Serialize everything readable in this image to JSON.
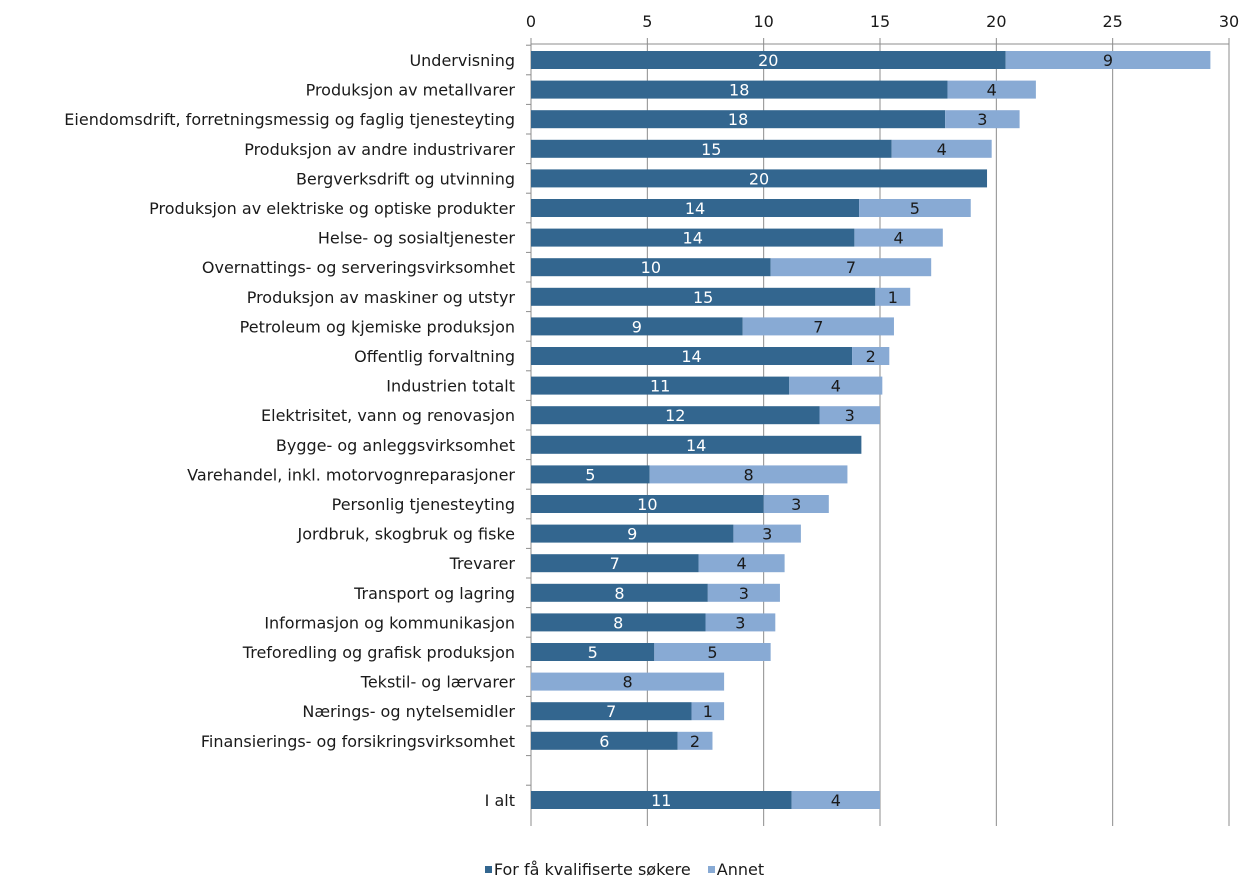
{
  "chart_data": {
    "type": "bar",
    "orientation": "horizontal",
    "stacked": true,
    "title": "",
    "xlabel": "",
    "ylabel": "",
    "xlim": [
      0,
      30
    ],
    "x_ticks": [
      0,
      5,
      10,
      15,
      20,
      25,
      30
    ],
    "axis_position": "top",
    "grid": true,
    "legend_placement": "bottom-center",
    "categories": [
      "Undervisning",
      "Produksjon av metallvarer",
      "Eiendomsdrift, forretningsmessig og faglig tjenesteyting",
      "Produksjon av andre industrivarer",
      "Bergverksdrift og utvinning",
      "Produksjon av elektriske og optiske produkter",
      "Helse- og sosialtjenester",
      "Overnattings- og serveringsvirksomhet",
      "Produksjon av maskiner og utstyr",
      "Petroleum og kjemiske produksjon",
      "Offentlig forvaltning",
      "Industrien totalt",
      "Elektrisitet, vann og renovasjon",
      "Bygge- og anleggsvirksomhet",
      "Varehandel, inkl. motorvognreparasjoner",
      "Personlig tjenesteyting",
      "Jordbruk, skogbruk og fiske",
      "Trevarer",
      "Transport og lagring",
      "Informasjon og kommunikasjon",
      "Treforedling og grafisk produksjon",
      "Tekstil- og lærvarer",
      "Nærings- og nytelsemidler",
      "Finansierings- og forsikringsvirksomhet",
      "",
      "I alt"
    ],
    "series": [
      {
        "name": "For få kvalifiserte søkere",
        "color": "#33668f",
        "values": [
          20.4,
          17.9,
          17.8,
          15.5,
          19.6,
          14.1,
          13.9,
          10.3,
          14.8,
          9.1,
          13.8,
          11.1,
          12.4,
          14.2,
          5.1,
          10.0,
          8.7,
          7.2,
          7.6,
          7.5,
          5.3,
          0,
          6.9,
          6.3,
          null,
          11.2
        ],
        "labels": [
          "20",
          "18",
          "18",
          "15",
          "20",
          "14",
          "14",
          "10",
          "15",
          "9",
          "14",
          "11",
          "12",
          "14",
          "5",
          "10",
          "9",
          "7",
          "8",
          "8",
          "5",
          "",
          "7",
          "6",
          "",
          "11"
        ]
      },
      {
        "name": "Annet",
        "color": "#88aad4",
        "values": [
          8.8,
          3.8,
          3.2,
          4.3,
          0,
          4.8,
          3.8,
          6.9,
          1.5,
          6.5,
          1.6,
          4.0,
          2.6,
          0,
          8.5,
          2.8,
          2.9,
          3.7,
          3.1,
          3.0,
          5.0,
          8.3,
          1.4,
          1.5,
          null,
          3.8
        ],
        "labels": [
          "9",
          "4",
          "3",
          "4",
          "",
          "5",
          "4",
          "7",
          "1",
          "7",
          "2",
          "4",
          "3",
          "",
          "8",
          "3",
          "3",
          "4",
          "3",
          "3",
          "5",
          "8",
          "1",
          "2",
          "",
          "4"
        ]
      }
    ]
  }
}
